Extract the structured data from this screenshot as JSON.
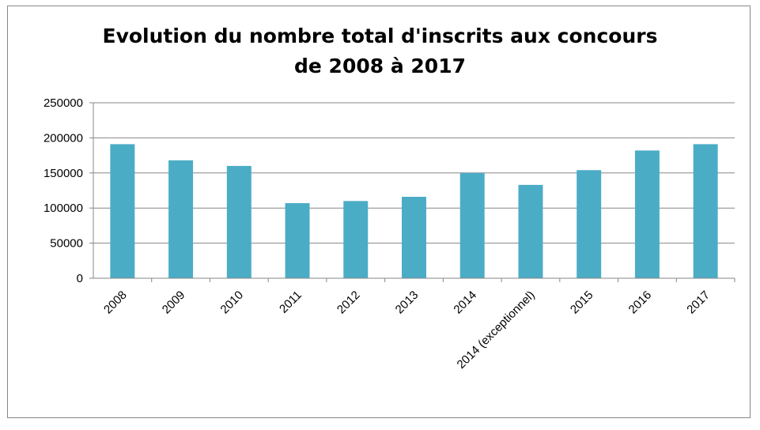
{
  "chart_data": {
    "type": "bar",
    "title_lines": [
      "Evolution du nombre total d'inscrits aux concours",
      "de 2008 à 2017"
    ],
    "categories": [
      "2008",
      "2009",
      "2010",
      "2011",
      "2012",
      "2013",
      "2014",
      "2014 (exceptionnel)",
      "2015",
      "2016",
      "2017"
    ],
    "values": [
      191000,
      168000,
      160000,
      107000,
      110000,
      116000,
      150000,
      133000,
      154000,
      182000,
      191000
    ],
    "ylim": [
      0,
      250000
    ],
    "yticks": [
      "0",
      "50000",
      "100000",
      "150000",
      "200000",
      "250000"
    ],
    "ytick_values": [
      0,
      50000,
      100000,
      150000,
      200000,
      250000
    ],
    "bar_color": "#4bacc6",
    "grid": true,
    "legend": "none"
  }
}
